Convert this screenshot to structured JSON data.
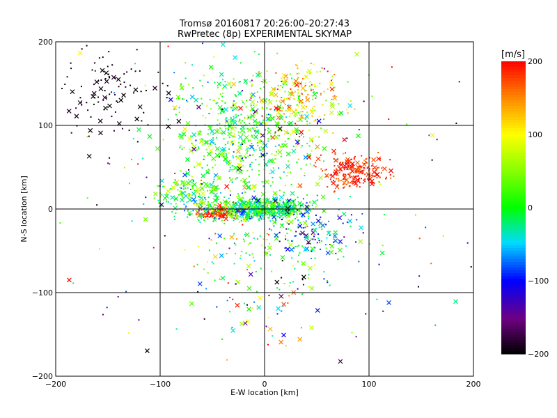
{
  "chart_data": {
    "type": "scatter",
    "title": "Tromsø 20160817 20:26:00–20:27:43",
    "subtitle": "RwPretec (8p) EXPERIMENTAL SKYMAP",
    "xlabel": "E-W location [km]",
    "ylabel": "N-S location [km]",
    "xlim": [
      -200,
      200
    ],
    "ylim": [
      -200,
      200
    ],
    "xticks": [
      -200,
      -100,
      0,
      100,
      200
    ],
    "yticks": [
      -200,
      -100,
      0,
      100,
      200
    ],
    "grid": true,
    "colorbar": {
      "title": "[m/s]",
      "range": [
        -200,
        200
      ],
      "ticks": [
        -200,
        -100,
        0,
        100,
        200
      ],
      "colormap": "rainbow (black-purple-blue-cyan-green-yellow-red)"
    },
    "markers": [
      "dot",
      "x"
    ],
    "clusters": [
      {
        "center": [
          0,
          0
        ],
        "spread": [
          18,
          6
        ],
        "n": 520,
        "vmean": -5,
        "vsd": 40
      },
      {
        "center": [
          -45,
          -5
        ],
        "spread": [
          8,
          3
        ],
        "n": 110,
        "vmean": 185,
        "vsd": 15
      },
      {
        "center": [
          -40,
          -3
        ],
        "spread": [
          25,
          6
        ],
        "n": 140,
        "vmean": -10,
        "vsd": 60
      },
      {
        "center": [
          -20,
          85
        ],
        "spread": [
          35,
          40
        ],
        "n": 600,
        "vmean": 10,
        "vsd": 45
      },
      {
        "center": [
          30,
          130
        ],
        "spread": [
          20,
          25
        ],
        "n": 220,
        "vmean": 110,
        "vsd": 50
      },
      {
        "center": [
          85,
          45
        ],
        "spread": [
          15,
          10
        ],
        "n": 220,
        "vmean": 185,
        "vsd": 15
      },
      {
        "center": [
          -150,
          140
        ],
        "spread": [
          25,
          30
        ],
        "n": 110,
        "vmean": -195,
        "vsd": 8
      },
      {
        "center": [
          -70,
          20
        ],
        "spread": [
          20,
          10
        ],
        "n": 140,
        "vmean": 20,
        "vsd": 50
      },
      {
        "center": [
          45,
          -30
        ],
        "spread": [
          25,
          18
        ],
        "n": 130,
        "vmean": -60,
        "vsd": 60
      },
      {
        "center": [
          0,
          -60
        ],
        "spread": [
          35,
          45
        ],
        "n": 160,
        "vmean": 0,
        "vsd": 100
      },
      {
        "center": [
          0,
          0
        ],
        "spread": [
          120,
          110
        ],
        "n": 200,
        "vmean": 0,
        "vsd": 130
      }
    ]
  }
}
